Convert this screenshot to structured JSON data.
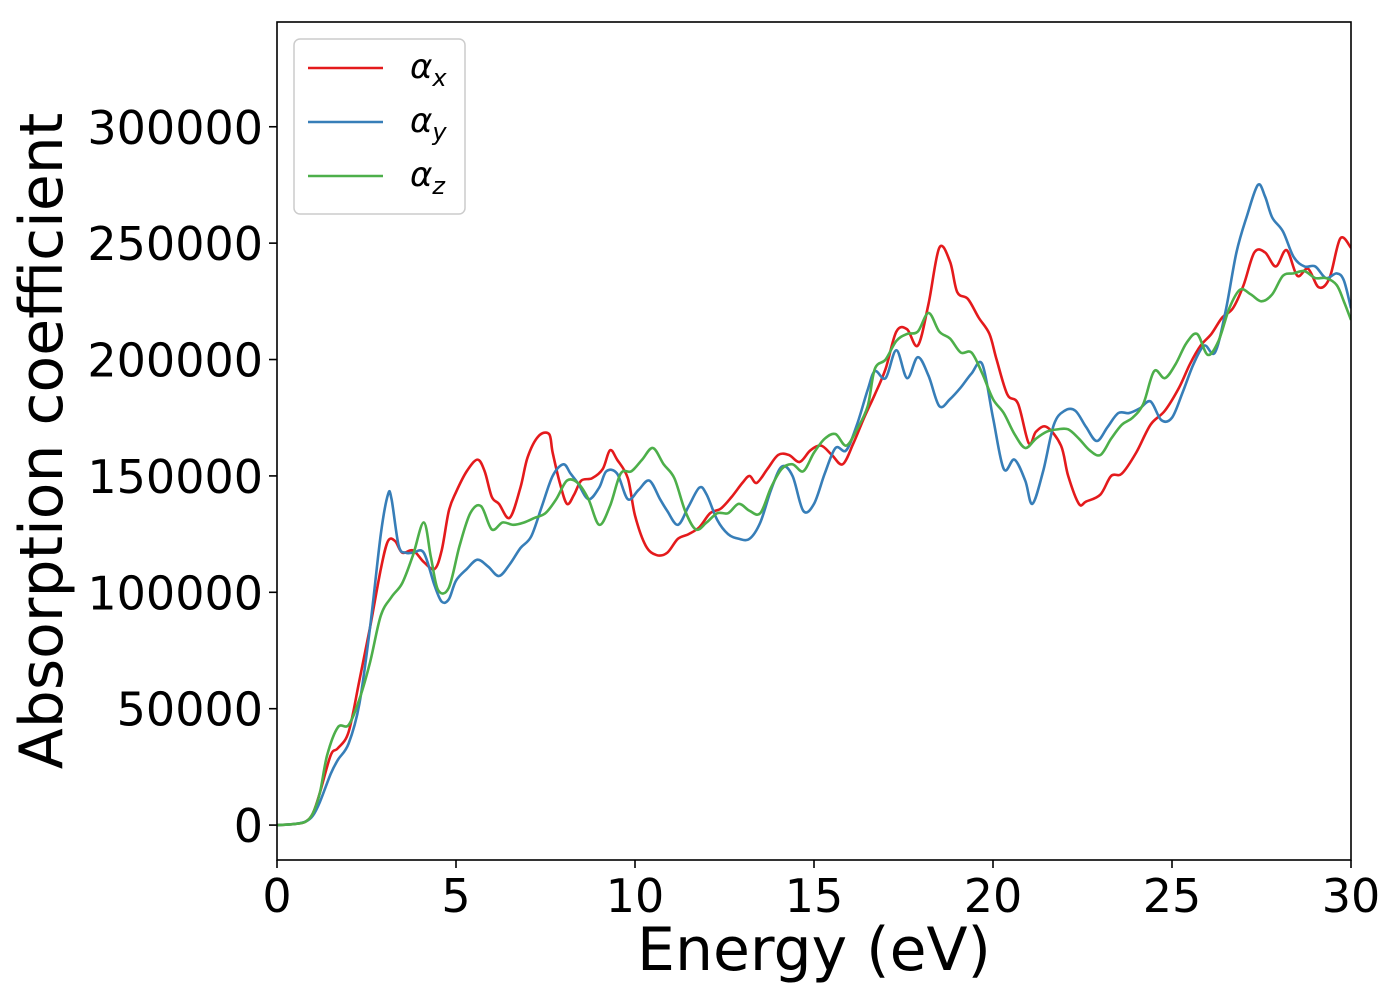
{
  "chart_data": {
    "type": "line",
    "title": "",
    "xlabel": "Energy (eV)",
    "ylabel": "Absorption coefficient",
    "xlim": [
      0,
      30
    ],
    "ylim": [
      -15000,
      345000
    ],
    "xticks": [
      0,
      5,
      10,
      15,
      20,
      25,
      30
    ],
    "yticks": [
      0,
      50000,
      100000,
      150000,
      200000,
      250000,
      300000
    ],
    "grid": false,
    "legend_position": "top-left",
    "series": [
      {
        "name": "α",
        "subscript": "x",
        "color": "#e41a1c",
        "x": [
          0,
          0.5,
          0.8,
          1.0,
          1.2,
          1.5,
          1.7,
          2.0,
          2.3,
          2.6,
          2.9,
          3.1,
          3.3,
          3.5,
          3.8,
          4.1,
          4.4,
          4.6,
          4.8,
          5.0,
          5.3,
          5.6,
          5.8,
          6.0,
          6.2,
          6.5,
          6.8,
          7.0,
          7.3,
          7.6,
          7.7,
          7.9,
          8.1,
          8.3,
          8.5,
          8.8,
          9.1,
          9.3,
          9.5,
          9.8,
          10.0,
          10.3,
          10.6,
          10.9,
          11.2,
          11.5,
          11.8,
          12.1,
          12.4,
          12.7,
          13.0,
          13.2,
          13.4,
          13.7,
          14.0,
          14.3,
          14.6,
          14.9,
          15.2,
          15.5,
          15.8,
          16.1,
          16.4,
          16.7,
          17.0,
          17.3,
          17.6,
          17.9,
          18.2,
          18.5,
          18.8,
          19.0,
          19.3,
          19.6,
          19.9,
          20.1,
          20.4,
          20.7,
          21.0,
          21.2,
          21.5,
          21.9,
          22.1,
          22.4,
          22.6,
          23.0,
          23.3,
          23.6,
          24.0,
          24.4,
          24.8,
          25.2,
          25.5,
          25.8,
          26.1,
          26.4,
          26.7,
          27.0,
          27.3,
          27.6,
          27.9,
          28.2,
          28.5,
          28.8,
          29.1,
          29.4,
          29.7,
          30.0
        ],
        "values": [
          0,
          500,
          1500,
          5000,
          14000,
          30000,
          33000,
          40000,
          62000,
          85000,
          110000,
          122000,
          122000,
          117000,
          118000,
          113000,
          110000,
          118000,
          135000,
          143000,
          152000,
          157000,
          152000,
          141000,
          138000,
          132000,
          145000,
          158000,
          167000,
          168000,
          160000,
          147000,
          138000,
          142000,
          148000,
          149000,
          153000,
          161000,
          157000,
          149000,
          133000,
          120000,
          116000,
          117000,
          123000,
          125000,
          128000,
          134000,
          136000,
          141000,
          147000,
          150000,
          147000,
          153000,
          159000,
          159000,
          156000,
          161000,
          163000,
          159000,
          155000,
          164000,
          175000,
          185000,
          196000,
          212000,
          213000,
          206000,
          224000,
          248000,
          242000,
          229000,
          226000,
          218000,
          211000,
          200000,
          185000,
          181000,
          164000,
          169000,
          171000,
          163000,
          150000,
          138000,
          139000,
          142000,
          150000,
          151000,
          160000,
          172000,
          178000,
          188000,
          198000,
          206000,
          211000,
          218000,
          222000,
          232000,
          246000,
          246000,
          240000,
          247000,
          236000,
          239000,
          231000,
          235000,
          252000,
          248000
        ]
      },
      {
        "name": "α",
        "subscript": "y",
        "color": "#377eb8",
        "x": [
          0,
          0.5,
          0.8,
          1.0,
          1.2,
          1.5,
          1.7,
          2.0,
          2.3,
          2.6,
          2.9,
          3.1,
          3.2,
          3.4,
          3.6,
          3.8,
          4.1,
          4.4,
          4.6,
          4.8,
          5.0,
          5.3,
          5.6,
          5.9,
          6.2,
          6.5,
          6.8,
          7.1,
          7.4,
          7.7,
          8.0,
          8.2,
          8.4,
          8.7,
          9.0,
          9.2,
          9.5,
          9.8,
          10.1,
          10.4,
          10.7,
          10.9,
          11.2,
          11.5,
          11.8,
          12.0,
          12.3,
          12.6,
          12.9,
          13.2,
          13.5,
          13.8,
          14.1,
          14.4,
          14.7,
          15.0,
          15.3,
          15.6,
          15.9,
          16.2,
          16.5,
          16.7,
          17.0,
          17.3,
          17.6,
          17.9,
          18.2,
          18.5,
          18.8,
          19.1,
          19.4,
          19.7,
          20.0,
          20.3,
          20.6,
          20.9,
          21.1,
          21.4,
          21.7,
          22.0,
          22.3,
          22.6,
          22.9,
          23.2,
          23.5,
          23.8,
          24.1,
          24.4,
          24.7,
          25.0,
          25.3,
          25.6,
          25.9,
          26.2,
          26.5,
          26.8,
          27.1,
          27.4,
          27.6,
          27.8,
          28.1,
          28.4,
          28.7,
          29.0,
          29.3,
          29.6,
          29.8,
          30.0
        ],
        "values": [
          0,
          500,
          1500,
          4000,
          10000,
          22000,
          28000,
          35000,
          52000,
          85000,
          125000,
          142000,
          140000,
          120000,
          117000,
          117000,
          117000,
          103000,
          96000,
          97000,
          105000,
          110000,
          114000,
          111000,
          107000,
          112000,
          119000,
          124000,
          137000,
          150000,
          155000,
          151000,
          147000,
          140000,
          145000,
          152000,
          151000,
          140000,
          144000,
          148000,
          140000,
          135000,
          129000,
          137000,
          145000,
          142000,
          131000,
          125000,
          123000,
          123000,
          130000,
          144000,
          154000,
          150000,
          135000,
          138000,
          151000,
          162000,
          161000,
          172000,
          187000,
          195000,
          192000,
          204000,
          192000,
          201000,
          193000,
          180000,
          183000,
          188000,
          194000,
          198000,
          175000,
          153000,
          157000,
          148000,
          138000,
          152000,
          172000,
          178000,
          178000,
          171000,
          165000,
          171000,
          177000,
          177000,
          179000,
          182000,
          174000,
          175000,
          186000,
          198000,
          206000,
          203000,
          221000,
          246000,
          262000,
          275000,
          270000,
          261000,
          255000,
          244000,
          240000,
          240000,
          235000,
          237000,
          234000,
          222000
        ]
      },
      {
        "name": "α",
        "subscript": "z",
        "color": "#4daf4a",
        "x": [
          0,
          0.5,
          0.8,
          1.0,
          1.2,
          1.4,
          1.7,
          2.0,
          2.3,
          2.6,
          2.9,
          3.2,
          3.5,
          3.8,
          4.1,
          4.3,
          4.5,
          4.8,
          5.1,
          5.4,
          5.7,
          6.0,
          6.3,
          6.6,
          6.9,
          7.2,
          7.5,
          7.8,
          8.1,
          8.4,
          8.7,
          9.0,
          9.3,
          9.6,
          9.9,
          10.2,
          10.5,
          10.8,
          11.1,
          11.4,
          11.7,
          12.0,
          12.3,
          12.6,
          12.9,
          13.2,
          13.5,
          13.8,
          14.1,
          14.4,
          14.7,
          15.0,
          15.3,
          15.6,
          15.9,
          16.2,
          16.5,
          16.7,
          17.0,
          17.3,
          17.6,
          17.9,
          18.2,
          18.5,
          18.8,
          19.1,
          19.4,
          19.7,
          20.0,
          20.3,
          20.6,
          20.9,
          21.2,
          21.5,
          21.8,
          22.1,
          22.4,
          22.7,
          23.0,
          23.3,
          23.6,
          23.9,
          24.2,
          24.5,
          24.8,
          25.1,
          25.4,
          25.7,
          26.0,
          26.3,
          26.6,
          26.9,
          27.2,
          27.5,
          27.8,
          28.1,
          28.4,
          28.7,
          29.0,
          29.3,
          29.6,
          29.8,
          30.0
        ],
        "values": [
          0,
          500,
          1500,
          5000,
          14000,
          30000,
          42000,
          43000,
          54000,
          70000,
          90000,
          98000,
          104000,
          116000,
          130000,
          115000,
          101000,
          102000,
          120000,
          134000,
          137000,
          127000,
          130000,
          129000,
          130000,
          132000,
          134000,
          140000,
          148000,
          147000,
          140000,
          129000,
          137000,
          151000,
          152000,
          157000,
          162000,
          155000,
          149000,
          135000,
          127000,
          130000,
          134000,
          134000,
          138000,
          135000,
          134000,
          145000,
          153000,
          155000,
          152000,
          160000,
          166000,
          168000,
          163000,
          170000,
          180000,
          196000,
          200000,
          208000,
          211000,
          212000,
          220000,
          212000,
          209000,
          203000,
          203000,
          194000,
          183000,
          177000,
          168000,
          162000,
          166000,
          169000,
          170000,
          170000,
          166000,
          161000,
          159000,
          166000,
          172000,
          175000,
          181000,
          195000,
          192000,
          198000,
          207000,
          211000,
          202000,
          208000,
          222000,
          230000,
          228000,
          225000,
          228000,
          236000,
          237000,
          238000,
          235000,
          235000,
          232000,
          225000,
          217000
        ]
      }
    ]
  }
}
